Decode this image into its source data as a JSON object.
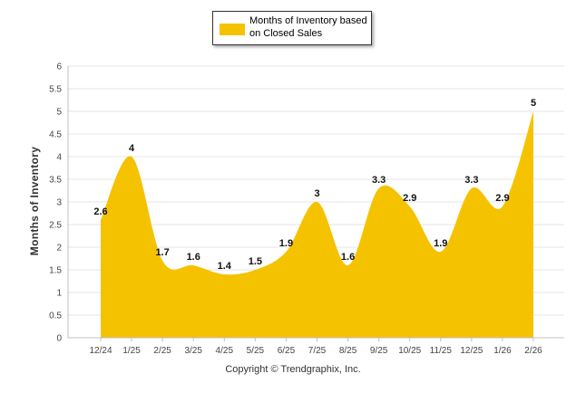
{
  "chart_data": {
    "type": "area",
    "title": "",
    "xlabel": "",
    "ylabel": "Months of Inventory",
    "categories": [
      "12/24",
      "1/25",
      "2/25",
      "3/25",
      "4/25",
      "5/25",
      "6/25",
      "7/25",
      "8/25",
      "9/25",
      "10/25",
      "11/25",
      "12/25",
      "1/26",
      "2/26"
    ],
    "series": [
      {
        "name": "Months of Inventory based on Closed Sales",
        "values": [
          2.6,
          4,
          1.7,
          1.6,
          1.4,
          1.5,
          1.9,
          3,
          1.6,
          3.3,
          2.9,
          1.9,
          3.3,
          2.9,
          5
        ],
        "color": "#F5C200"
      }
    ],
    "ylim": [
      0,
      6
    ],
    "yticks": [
      "0",
      "0.5",
      "1",
      "1.5",
      "2",
      "2.5",
      "3",
      "3.5",
      "4",
      "4.5",
      "5",
      "5.5",
      "6"
    ],
    "grid": true,
    "legend": "top-center"
  },
  "legend": {
    "label": "Months of Inventory based on Closed Sales"
  },
  "footer": {
    "copyright": "Copyright © Trendgraphix, Inc."
  }
}
